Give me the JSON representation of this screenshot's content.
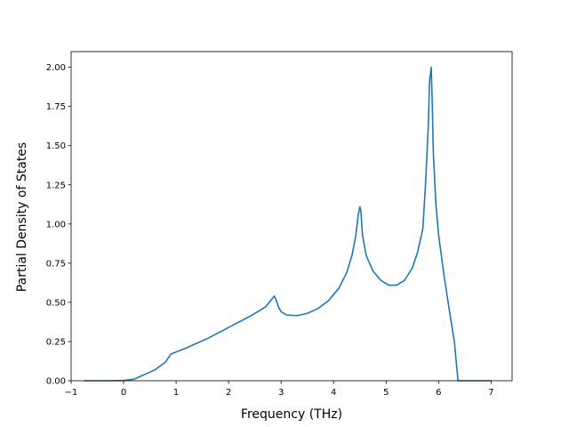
{
  "chart_data": {
    "type": "line",
    "title": "",
    "xlabel": "Frequency (THz)",
    "ylabel": "Partial Density of States",
    "xlim": [
      -1.0,
      7.4
    ],
    "ylim": [
      0.0,
      2.1
    ],
    "xticks": [
      -1,
      0,
      1,
      2,
      3,
      4,
      5,
      6,
      7
    ],
    "xtick_labels": [
      "−1",
      "0",
      "1",
      "2",
      "3",
      "4",
      "5",
      "6",
      "7"
    ],
    "yticks": [
      0.0,
      0.25,
      0.5,
      0.75,
      1.0,
      1.25,
      1.5,
      1.75,
      2.0
    ],
    "ytick_labels": [
      "0.00",
      "0.25",
      "0.50",
      "0.75",
      "1.00",
      "1.25",
      "1.50",
      "1.75",
      "2.00"
    ],
    "grid": false,
    "legend": "none",
    "series": [
      {
        "color": "#1f77b4",
        "x": [
          -0.75,
          -0.3,
          0.0,
          0.2,
          0.4,
          0.6,
          0.8,
          0.9,
          1.2,
          1.6,
          2.0,
          2.4,
          2.7,
          2.87,
          2.9,
          2.95,
          3.0,
          3.1,
          3.3,
          3.5,
          3.7,
          3.9,
          4.1,
          4.25,
          4.35,
          4.42,
          4.47,
          4.5,
          4.52,
          4.55,
          4.62,
          4.75,
          4.9,
          5.05,
          5.2,
          5.35,
          5.5,
          5.6,
          5.7,
          5.75,
          5.8,
          5.83,
          5.86,
          5.88,
          5.9,
          5.95,
          6.0,
          6.1,
          6.2,
          6.3,
          6.37,
          6.4,
          6.6,
          7.0
        ],
        "y": [
          0.0,
          0.0,
          0.002,
          0.01,
          0.04,
          0.07,
          0.12,
          0.17,
          0.21,
          0.27,
          0.34,
          0.41,
          0.47,
          0.54,
          0.52,
          0.47,
          0.44,
          0.42,
          0.415,
          0.43,
          0.46,
          0.51,
          0.59,
          0.69,
          0.8,
          0.92,
          1.06,
          1.11,
          1.08,
          0.93,
          0.8,
          0.7,
          0.64,
          0.61,
          0.61,
          0.64,
          0.72,
          0.82,
          0.97,
          1.25,
          1.6,
          1.92,
          2.0,
          1.75,
          1.45,
          1.12,
          0.93,
          0.68,
          0.46,
          0.25,
          0.0,
          0.0,
          0.0,
          0.0
        ]
      }
    ]
  }
}
